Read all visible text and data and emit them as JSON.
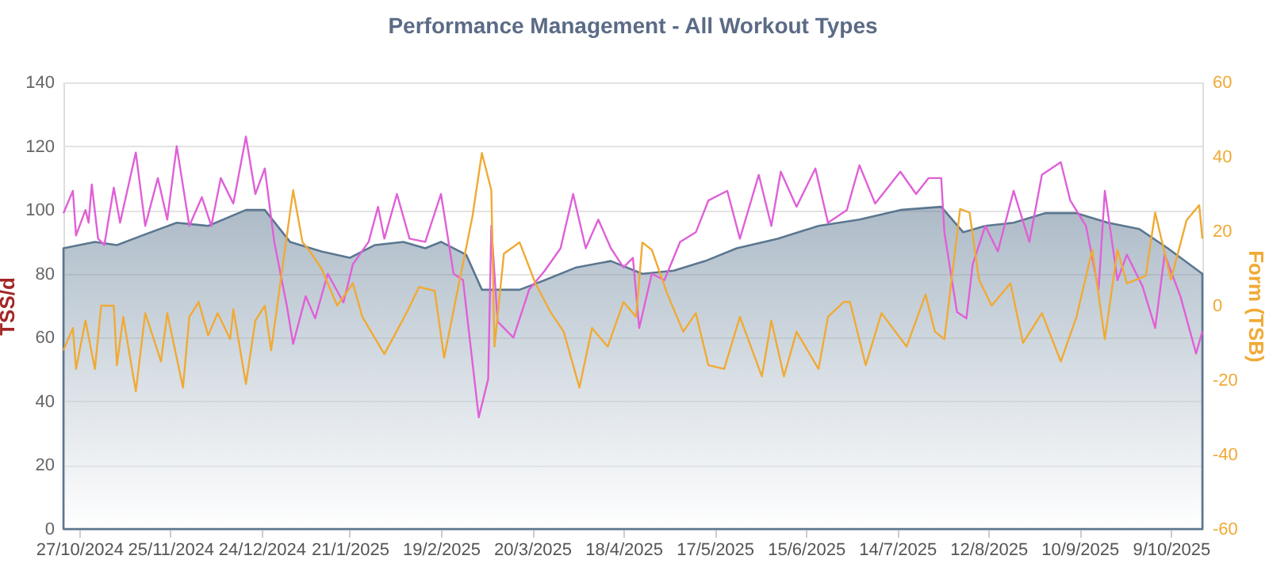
{
  "chart_data": {
    "type": "line",
    "title": "Performance Management - All Workout Types",
    "ylabel": "TSS/d",
    "y2label": "Form (TSB)",
    "xlim": [
      "2024-10-22",
      "2025-10-19"
    ],
    "xticks": [
      {
        "value": "2024-10-27",
        "label": "27/10/2024"
      },
      {
        "value": "2024-11-25",
        "label": "25/11/2024"
      },
      {
        "value": "2024-12-24",
        "label": "24/12/2024"
      },
      {
        "value": "2025-01-21",
        "label": "21/1/2025"
      },
      {
        "value": "2025-02-19",
        "label": "19/2/2025"
      },
      {
        "value": "2025-03-20",
        "label": "20/3/2025"
      },
      {
        "value": "2025-04-18",
        "label": "18/4/2025"
      },
      {
        "value": "2025-05-17",
        "label": "17/5/2025"
      },
      {
        "value": "2025-06-15",
        "label": "15/6/2025"
      },
      {
        "value": "2025-07-14",
        "label": "14/7/2025"
      },
      {
        "value": "2025-08-12",
        "label": "12/8/2025"
      },
      {
        "value": "2025-09-10",
        "label": "10/9/2025"
      },
      {
        "value": "2025-10-09",
        "label": "9/10/2025"
      }
    ],
    "ylim": [
      0,
      140
    ],
    "yticks": [
      0,
      20,
      40,
      60,
      80,
      100,
      120,
      140
    ],
    "y2lim": [
      -60,
      60
    ],
    "y2ticks": [
      -60,
      -40,
      -20,
      0,
      20,
      40,
      60
    ],
    "grid": "y",
    "line_style": "solid",
    "series": [
      {
        "type": "area",
        "color": "#5b7790",
        "x": [
          "2024-10-22",
          "2024-11-01",
          "2024-11-08",
          "2024-11-16",
          "2024-11-27",
          "2024-12-07",
          "2024-12-19",
          "2024-12-25",
          "2025-01-02",
          "2025-01-12",
          "2025-01-21",
          "2025-01-29",
          "2025-02-07",
          "2025-02-14",
          "2025-02-19",
          "2025-02-27",
          "2025-03-04",
          "2025-03-16",
          "2025-03-24",
          "2025-04-03",
          "2025-04-14",
          "2025-04-24",
          "2025-05-04",
          "2025-05-14",
          "2025-05-24",
          "2025-06-06",
          "2025-06-19",
          "2025-07-02",
          "2025-07-15",
          "2025-07-28",
          "2025-08-04",
          "2025-08-11",
          "2025-08-20",
          "2025-08-30",
          "2025-09-09",
          "2025-09-19",
          "2025-09-29",
          "2025-10-08",
          "2025-10-19"
        ],
        "values": [
          88,
          90,
          89,
          92,
          96,
          95,
          100,
          100,
          90,
          87,
          85,
          89,
          90,
          88,
          90,
          86,
          75,
          75,
          78,
          82,
          84,
          80,
          81,
          84,
          88,
          91,
          95,
          97,
          100,
          101,
          93,
          95,
          96,
          99,
          99,
          96,
          94,
          88,
          80
        ]
      },
      {
        "color": "#e060d8",
        "x": [
          "2024-10-22",
          "2024-10-25",
          "2024-10-26",
          "2024-10-29",
          "2024-10-30",
          "2024-10-31",
          "2024-11-02",
          "2024-11-04",
          "2024-11-07",
          "2024-11-09",
          "2024-11-14",
          "2024-11-17",
          "2024-11-21",
          "2024-11-24",
          "2024-11-27",
          "2024-12-01",
          "2024-12-05",
          "2024-12-08",
          "2024-12-11",
          "2024-12-15",
          "2024-12-19",
          "2024-12-22",
          "2024-12-25",
          "2024-12-28",
          "2025-01-01",
          "2025-01-03",
          "2025-01-07",
          "2025-01-10",
          "2025-01-14",
          "2025-01-19",
          "2025-01-22",
          "2025-01-27",
          "2025-01-30",
          "2025-02-01",
          "2025-02-05",
          "2025-02-09",
          "2025-02-14",
          "2025-02-19",
          "2025-02-23",
          "2025-02-26",
          "2025-03-03",
          "2025-03-06",
          "2025-03-07",
          "2025-03-09",
          "2025-03-14",
          "2025-03-19",
          "2025-03-24",
          "2025-03-29",
          "2025-04-02",
          "2025-04-06",
          "2025-04-10",
          "2025-04-14",
          "2025-04-18",
          "2025-04-21",
          "2025-04-23",
          "2025-04-27",
          "2025-05-01",
          "2025-05-06",
          "2025-05-11",
          "2025-05-15",
          "2025-05-21",
          "2025-05-25",
          "2025-05-31",
          "2025-06-04",
          "2025-06-07",
          "2025-06-12",
          "2025-06-18",
          "2025-06-22",
          "2025-06-28",
          "2025-07-02",
          "2025-07-07",
          "2025-07-15",
          "2025-07-20",
          "2025-07-24",
          "2025-07-28",
          "2025-07-29",
          "2025-08-02",
          "2025-08-05",
          "2025-08-07",
          "2025-08-11",
          "2025-08-15",
          "2025-08-20",
          "2025-08-25",
          "2025-08-29",
          "2025-09-04",
          "2025-09-07",
          "2025-09-12",
          "2025-09-16",
          "2025-09-18",
          "2025-09-22",
          "2025-09-25",
          "2025-09-30",
          "2025-10-04",
          "2025-10-07",
          "2025-10-12",
          "2025-10-17",
          "2025-10-19"
        ],
        "values": [
          99,
          106,
          92,
          100,
          96,
          108,
          91,
          89,
          107,
          96,
          118,
          95,
          110,
          97,
          120,
          95,
          104,
          95,
          110,
          102,
          123,
          105,
          113,
          90,
          70,
          58,
          73,
          66,
          80,
          71,
          83,
          90,
          101,
          91,
          105,
          91,
          90,
          105,
          80,
          78,
          35,
          47,
          95,
          65,
          60,
          75,
          81,
          88,
          105,
          88,
          97,
          88,
          82,
          85,
          63,
          80,
          78,
          90,
          93,
          103,
          106,
          91,
          111,
          95,
          112,
          101,
          113,
          96,
          100,
          114,
          102,
          112,
          105,
          110,
          110,
          93,
          68,
          66,
          83,
          95,
          87,
          106,
          90,
          111,
          115,
          103,
          95,
          75,
          106,
          78,
          86,
          76,
          63,
          86,
          73,
          55,
          62
        ]
      },
      {
        "axis": "y2",
        "color": "#f0aa35",
        "x": [
          "2024-10-22",
          "2024-10-25",
          "2024-10-26",
          "2024-10-29",
          "2024-11-01",
          "2024-11-03",
          "2024-11-07",
          "2024-11-08",
          "2024-11-10",
          "2024-11-14",
          "2024-11-17",
          "2024-11-22",
          "2024-11-24",
          "2024-11-29",
          "2024-12-01",
          "2024-12-04",
          "2024-12-07",
          "2024-12-10",
          "2024-12-14",
          "2024-12-15",
          "2024-12-19",
          "2024-12-22",
          "2024-12-25",
          "2024-12-27",
          "2025-01-03",
          "2025-01-06",
          "2025-01-08",
          "2025-01-12",
          "2025-01-17",
          "2025-01-22",
          "2025-01-25",
          "2025-02-01",
          "2025-02-08",
          "2025-02-12",
          "2025-02-17",
          "2025-02-20",
          "2025-02-24",
          "2025-03-01",
          "2025-03-04",
          "2025-03-07",
          "2025-03-08",
          "2025-03-11",
          "2025-03-16",
          "2025-03-21",
          "2025-03-26",
          "2025-03-30",
          "2025-04-04",
          "2025-04-08",
          "2025-04-13",
          "2025-04-18",
          "2025-04-22",
          "2025-04-24",
          "2025-04-27",
          "2025-05-02",
          "2025-05-07",
          "2025-05-11",
          "2025-05-15",
          "2025-05-20",
          "2025-05-25",
          "2025-06-01",
          "2025-06-04",
          "2025-06-08",
          "2025-06-12",
          "2025-06-19",
          "2025-06-22",
          "2025-06-27",
          "2025-06-29",
          "2025-07-04",
          "2025-07-09",
          "2025-07-17",
          "2025-07-23",
          "2025-07-26",
          "2025-07-29",
          "2025-08-03",
          "2025-08-06",
          "2025-08-09",
          "2025-08-13",
          "2025-08-19",
          "2025-08-23",
          "2025-08-29",
          "2025-09-04",
          "2025-09-09",
          "2025-09-14",
          "2025-09-18",
          "2025-09-22",
          "2025-09-25",
          "2025-10-01",
          "2025-10-04",
          "2025-10-09",
          "2025-10-14",
          "2025-10-18",
          "2025-10-19"
        ],
        "values": [
          -12,
          -6,
          -17,
          -4,
          -17,
          0,
          0,
          -16,
          -3,
          -23,
          -2,
          -15,
          -2,
          -22,
          -3,
          1,
          -8,
          -2,
          -9,
          -1,
          -21,
          -4,
          0,
          -12,
          31,
          17,
          15,
          10,
          0,
          6,
          -3,
          -13,
          -2,
          5,
          4,
          -14,
          3,
          24,
          41,
          31,
          -11,
          14,
          17,
          6,
          -2,
          -7,
          -22,
          -6,
          -11,
          1,
          -3,
          17,
          15,
          3,
          -7,
          -2,
          -16,
          -17,
          -3,
          -19,
          -4,
          -19,
          -7,
          -17,
          -3,
          1,
          1,
          -16,
          -2,
          -11,
          3,
          -7,
          -9,
          26,
          25,
          7,
          0,
          6,
          -10,
          -2,
          -15,
          -3,
          15,
          -9,
          15,
          6,
          8,
          25,
          7,
          23,
          27,
          18
        ]
      }
    ]
  }
}
